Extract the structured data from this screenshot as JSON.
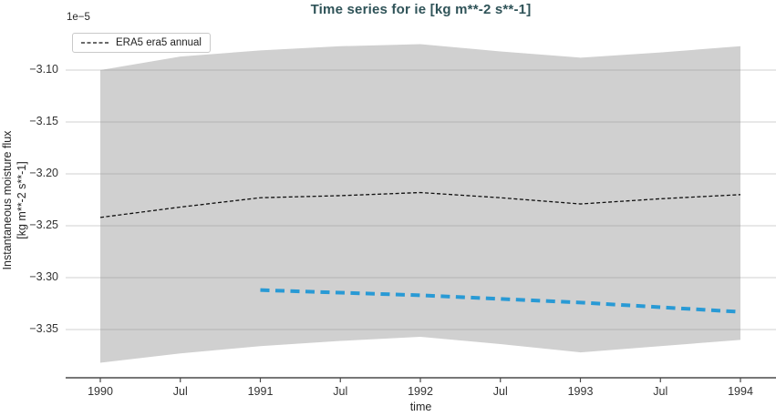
{
  "colors": {
    "title": "#2f5358",
    "band": "#d0d0d0",
    "grid": "#7f7f7f",
    "era5_line": "#111111",
    "blue_line": "#299ad5",
    "axis": "#4a4a4a",
    "tick_label": "#333333"
  },
  "legend": {
    "location": "upper left",
    "items": [
      {
        "label": "ERA5 era5 annual",
        "line_style": "dashed",
        "color": "#111111"
      }
    ]
  },
  "chart_data": {
    "type": "line",
    "title": "Time series for ie [kg m**-2 s**-1]",
    "xlabel": "time",
    "ylabel_line1": "Instantaneous moisture flux",
    "ylabel_line2": "[kg m**-2 s**-1]",
    "y_offset_text": "1e−5",
    "value_units": "values are in units of 1e-5 kg m**-2 s**-1",
    "grid": "horizontal gridlines at y ticks",
    "xlim": [
      1989.78,
      1994.22
    ],
    "ylim_e5": [
      -3.397,
      -3.057
    ],
    "x_ticks": {
      "labels": [
        "1990",
        "Jul",
        "1991",
        "Jul",
        "1992",
        "Jul",
        "1993",
        "Jul",
        "1994"
      ],
      "positions": [
        1990,
        1990.5,
        1991,
        1991.5,
        1992,
        1992.5,
        1993,
        1993.5,
        1994
      ]
    },
    "y_ticks": {
      "labels": [
        "−3.10",
        "−3.15",
        "−3.20",
        "−3.25",
        "−3.30",
        "−3.35"
      ],
      "values": [
        -3.1,
        -3.15,
        -3.2,
        -3.25,
        -3.3,
        -3.35
      ]
    },
    "series": [
      {
        "id": "era5-annual",
        "legend_label": "ERA5 era5 annual",
        "type": "line",
        "line_style": "dashed",
        "line_width": 1.3,
        "color": "#111111",
        "x": [
          1990,
          1990.5,
          1991,
          1991.5,
          1992,
          1992.5,
          1993,
          1993.5,
          1994
        ],
        "y_e5": [
          -3.242,
          -3.232,
          -3.223,
          -3.221,
          -3.218,
          -3.223,
          -3.229,
          -3.224,
          -3.22
        ]
      },
      {
        "id": "blue-dashed",
        "legend_label": null,
        "type": "line",
        "line_style": "dashed",
        "line_width": 4,
        "color": "#299ad5",
        "x": [
          1991,
          1992,
          1993,
          1994
        ],
        "y_e5": [
          -3.312,
          -3.317,
          -3.324,
          -3.333
        ]
      },
      {
        "id": "uncertainty-band",
        "legend_label": null,
        "type": "band",
        "color": "#d0d0d0",
        "x": [
          1990,
          1990.5,
          1991,
          1991.5,
          1992,
          1992.5,
          1993,
          1993.5,
          1994
        ],
        "top_e5": [
          -3.1,
          -3.087,
          -3.081,
          -3.077,
          -3.075,
          -3.082,
          -3.088,
          -3.083,
          -3.077
        ],
        "bottom_e5": [
          -3.382,
          -3.373,
          -3.366,
          -3.361,
          -3.357,
          -3.364,
          -3.372,
          -3.366,
          -3.36
        ]
      }
    ]
  }
}
